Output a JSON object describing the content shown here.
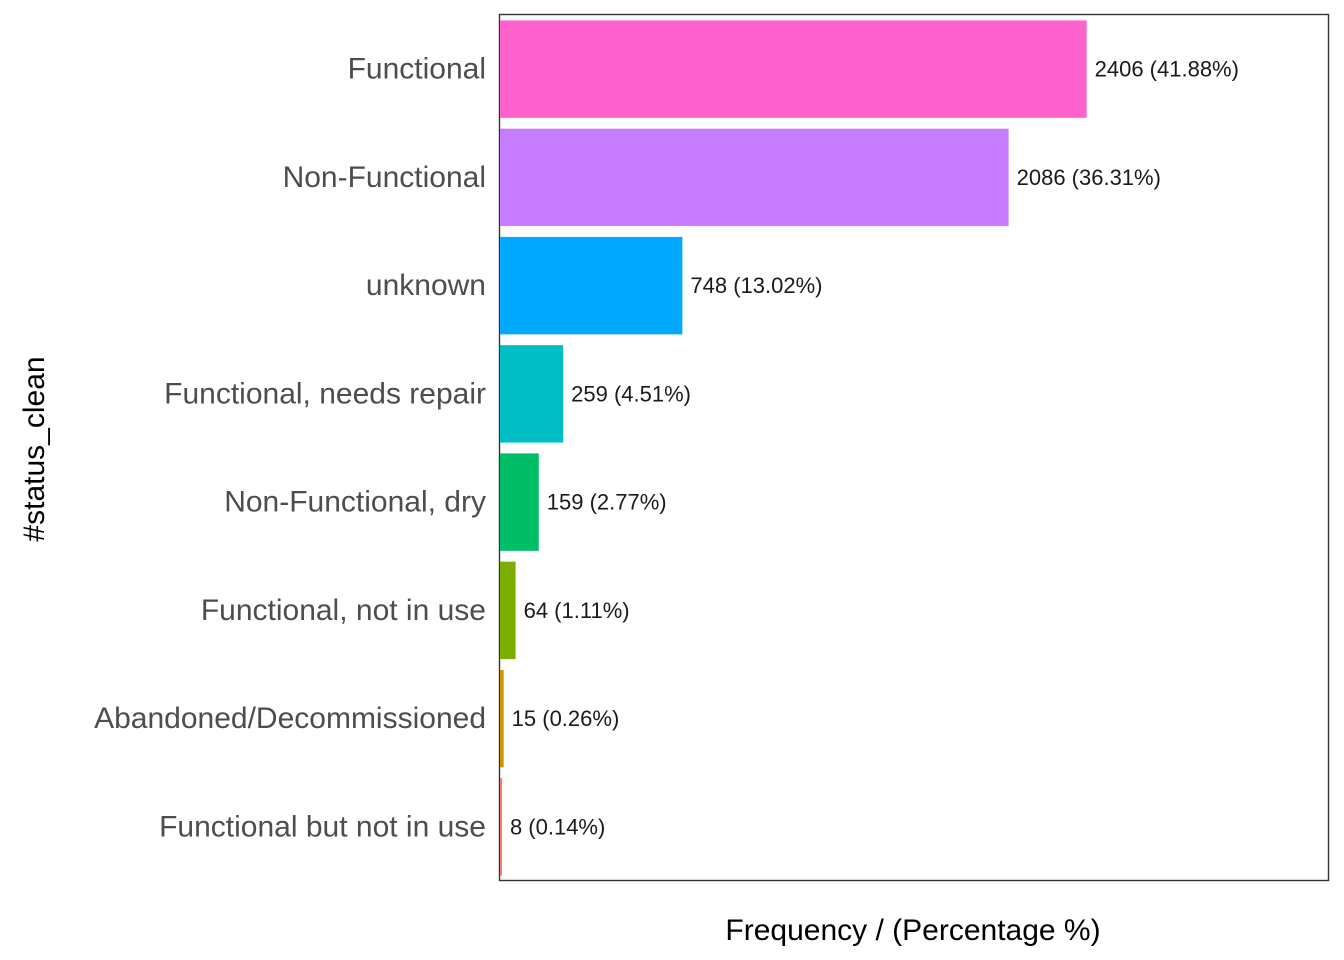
{
  "chart_data": {
    "type": "bar",
    "orientation": "horizontal",
    "categories": [
      "Functional",
      "Non-Functional",
      "unknown",
      "Functional, needs repair",
      "Non-Functional, dry",
      "Functional, not in use",
      "Abandoned/Decommissioned",
      "Functional but not in use"
    ],
    "values": [
      2406,
      2086,
      748,
      259,
      159,
      64,
      15,
      8
    ],
    "labels": [
      "2406 (41.88%)",
      "2086 (36.31%)",
      "748 (13.02%)",
      "259 (4.51%)",
      "159 (2.77%)",
      "64 (1.11%)",
      "15 (0.26%)",
      "8 (0.14%)"
    ],
    "colors": [
      "#FF61CC",
      "#C77CFF",
      "#00A9FF",
      "#00BFC4",
      "#00BE67",
      "#7CAE00",
      "#CD9600",
      "#F8766D"
    ],
    "xlabel": "Frequency / (Percentage %)",
    "ylabel": "#status_clean",
    "xlim": [
      0,
      3400
    ],
    "grid": false,
    "legend": "none"
  }
}
